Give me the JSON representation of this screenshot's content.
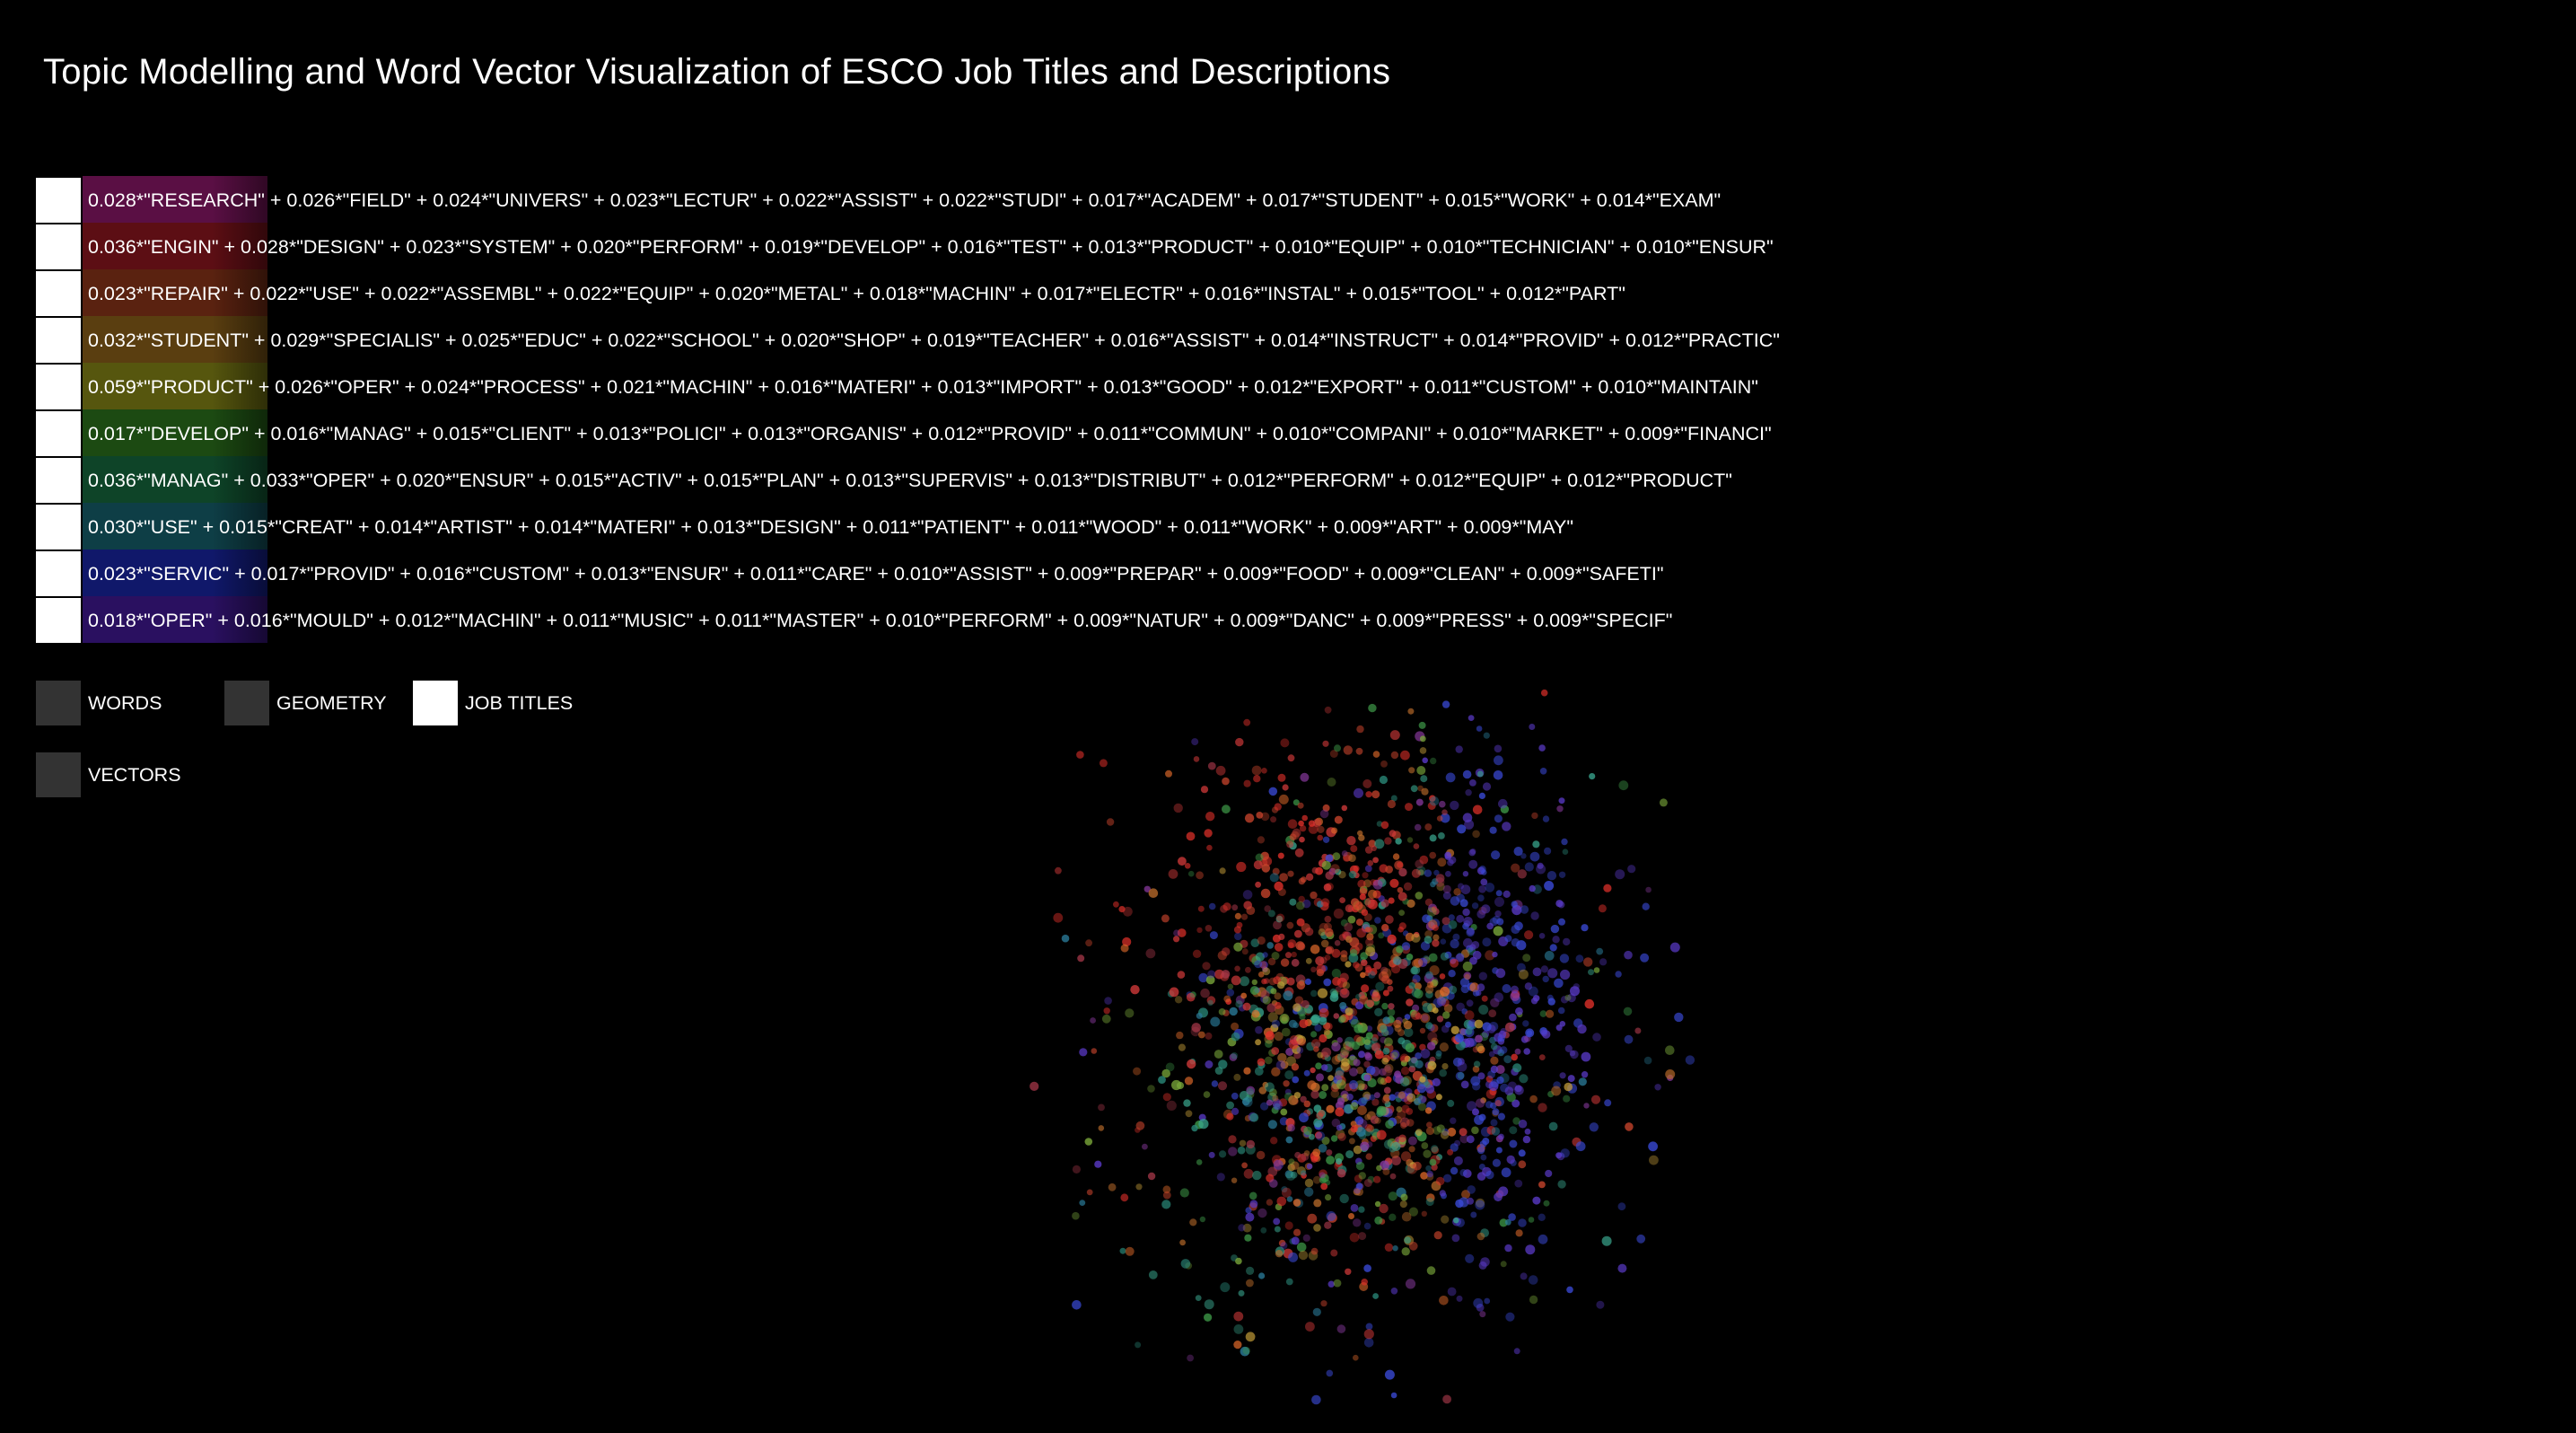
{
  "title": "Topic Modelling and Word Vector Visualization of ESCO Job Titles and Descriptions",
  "topics": [
    {
      "text": "0.028*\"RESEARCH\" + 0.026*\"FIELD\" + 0.024*\"UNIVERS\" + 0.023*\"LECTUR\" + 0.022*\"ASSIST\" + 0.022*\"STUDI\" + 0.017*\"ACADEM\" + 0.017*\"STUDENT\" + 0.015*\"WORK\" + 0.014*\"EXAM\"",
      "color": "#5a0f44"
    },
    {
      "text": "0.036*\"ENGIN\" + 0.028*\"DESIGN\" + 0.023*\"SYSTEM\" + 0.020*\"PERFORM\" + 0.019*\"DEVELOP\" + 0.016*\"TEST\" + 0.013*\"PRODUCT\" + 0.010*\"EQUIP\" + 0.010*\"TECHNICIAN\" + 0.010*\"ENSUR\"",
      "color": "#5c0e14"
    },
    {
      "text": "0.023*\"REPAIR\" + 0.022*\"USE\" + 0.022*\"ASSEMBL\" + 0.022*\"EQUIP\" + 0.020*\"METAL\" + 0.018*\"MACHIN\" + 0.017*\"ELECTR\" + 0.016*\"INSTAL\" + 0.015*\"TOOL\" + 0.012*\"PART\"",
      "color": "#5a2210"
    },
    {
      "text": "0.032*\"STUDENT\" + 0.029*\"SPECIALIS\" + 0.025*\"EDUC\" + 0.022*\"SCHOOL\" + 0.020*\"SHOP\" + 0.019*\"TEACHER\" + 0.016*\"ASSIST\" + 0.014*\"INSTRUCT\" + 0.014*\"PROVID\" + 0.012*\"PRACTIC\"",
      "color": "#5a3e10"
    },
    {
      "text": "0.059*\"PRODUCT\" + 0.026*\"OPER\" + 0.024*\"PROCESS\" + 0.021*\"MACHIN\" + 0.016*\"MATERI\" + 0.013*\"IMPORT\" + 0.013*\"GOOD\" + 0.012*\"EXPORT\" + 0.011*\"CUSTOM\" + 0.010*\"MAINTAIN\"",
      "color": "#56560e"
    },
    {
      "text": "0.017*\"DEVELOP\" + 0.016*\"MANAG\" + 0.015*\"CLIENT\" + 0.013*\"POLICI\" + 0.013*\"ORGANIS\" + 0.012*\"PROVID\" + 0.011*\"COMMUN\" + 0.010*\"COMPANI\" + 0.010*\"MARKET\" + 0.009*\"FINANCI\"",
      "color": "#1c4a12"
    },
    {
      "text": "0.036*\"MANAG\" + 0.033*\"OPER\" + 0.020*\"ENSUR\" + 0.015*\"ACTIV\" + 0.015*\"PLAN\" + 0.013*\"SUPERVIS\" + 0.013*\"DISTRIBUT\" + 0.012*\"PERFORM\" + 0.012*\"EQUIP\" + 0.012*\"PRODUCT\"",
      "color": "#0e4428"
    },
    {
      "text": "0.030*\"USE\" + 0.015*\"CREAT\" + 0.014*\"ARTIST\" + 0.014*\"MATERI\" + 0.013*\"DESIGN\" + 0.011*\"PATIENT\" + 0.011*\"WOOD\" + 0.011*\"WORK\" + 0.009*\"ART\" + 0.009*\"MAY\"",
      "color": "#0e3e46"
    },
    {
      "text": "0.023*\"SERVIC\" + 0.017*\"PROVID\" + 0.016*\"CUSTOM\" + 0.013*\"ENSUR\" + 0.011*\"CARE\" + 0.010*\"ASSIST\" + 0.009*\"PREPAR\" + 0.009*\"FOOD\" + 0.009*\"CLEAN\" + 0.009*\"SAFETI\"",
      "color": "#10186a"
    },
    {
      "text": "0.018*\"OPER\" + 0.016*\"MOULD\" + 0.012*\"MACHIN\" + 0.011*\"MUSIC\" + 0.011*\"MASTER\" + 0.010*\"PERFORM\" + 0.009*\"NATUR\" + 0.009*\"DANC\" + 0.009*\"PRESS\" + 0.009*\"SPECIF\"",
      "color": "#2a1060"
    }
  ],
  "toggles": {
    "words": {
      "label": "WORDS",
      "on": false
    },
    "geometry": {
      "label": "GEOMETRY",
      "on": false
    },
    "job_titles": {
      "label": "JOB TITLES",
      "on": true
    },
    "vectors": {
      "label": "VECTORS",
      "on": false
    }
  },
  "point_colors": [
    "#e0302a",
    "#d43a3a",
    "#c8442c",
    "#b86a2a",
    "#c8a03a",
    "#7aa83a",
    "#3e9a48",
    "#2a8a7a",
    "#2a7a98",
    "#3a4ad8",
    "#5a3ac8",
    "#8a3aa0",
    "#a8384a",
    "#e06a2a",
    "#3aa890"
  ]
}
